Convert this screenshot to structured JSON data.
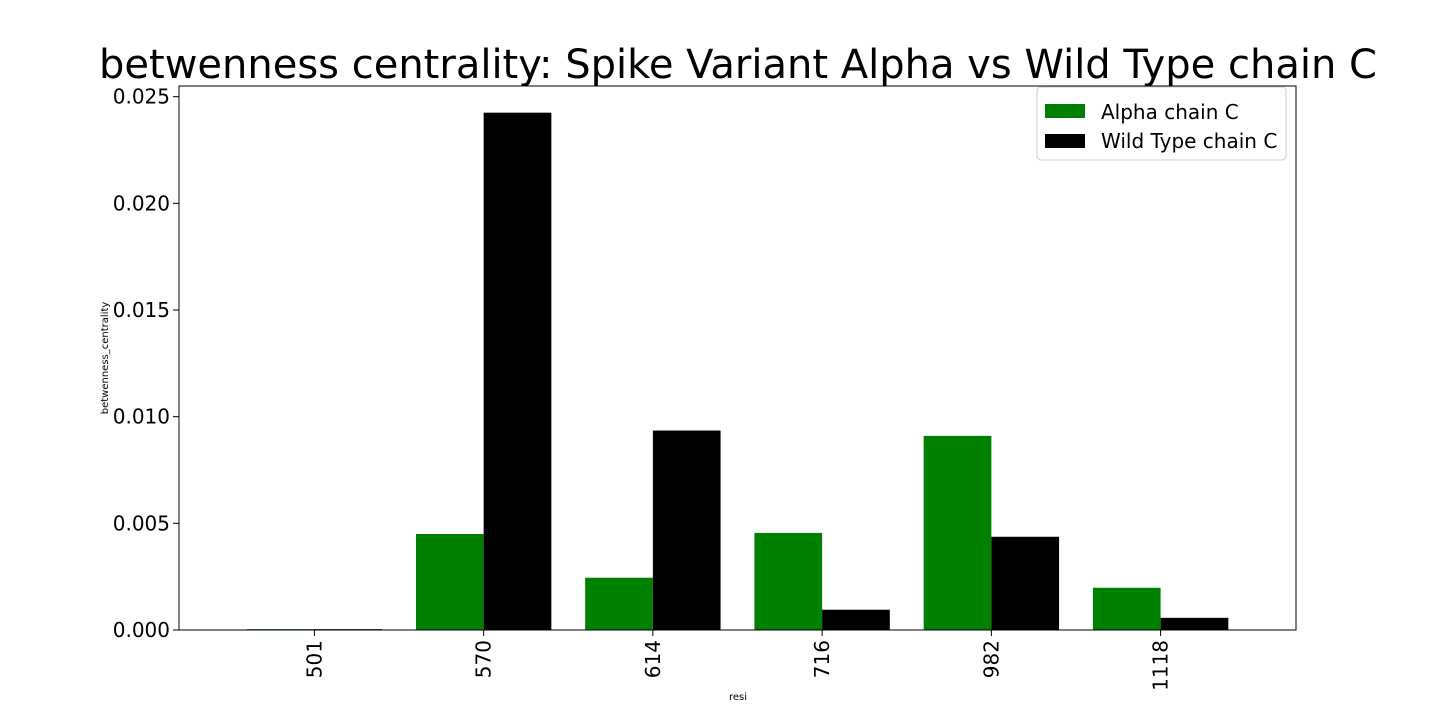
{
  "chart_data": {
    "type": "bar",
    "title": "betwenness centrality: Spike Variant Alpha vs Wild Type chain C",
    "xlabel": "resi",
    "ylabel": "betwenness_centrality",
    "categories": [
      "501",
      "570",
      "614",
      "716",
      "982",
      "1118"
    ],
    "series": [
      {
        "name": "Alpha chain C",
        "color": "#008000",
        "values": [
          4e-05,
          0.0045,
          0.00245,
          0.00455,
          0.0091,
          0.00198
        ]
      },
      {
        "name": "Wild Type chain C",
        "color": "#000000",
        "values": [
          4e-05,
          0.02425,
          0.00935,
          0.00095,
          0.00437,
          0.00057
        ]
      }
    ],
    "ylim": [
      0,
      0.0255
    ],
    "yticks": [
      "0.000",
      "0.005",
      "0.010",
      "0.015",
      "0.020",
      "0.025"
    ],
    "ytick_values": [
      0,
      0.005,
      0.01,
      0.015,
      0.02,
      0.025
    ],
    "grid": false,
    "legend_position": "top-right"
  }
}
